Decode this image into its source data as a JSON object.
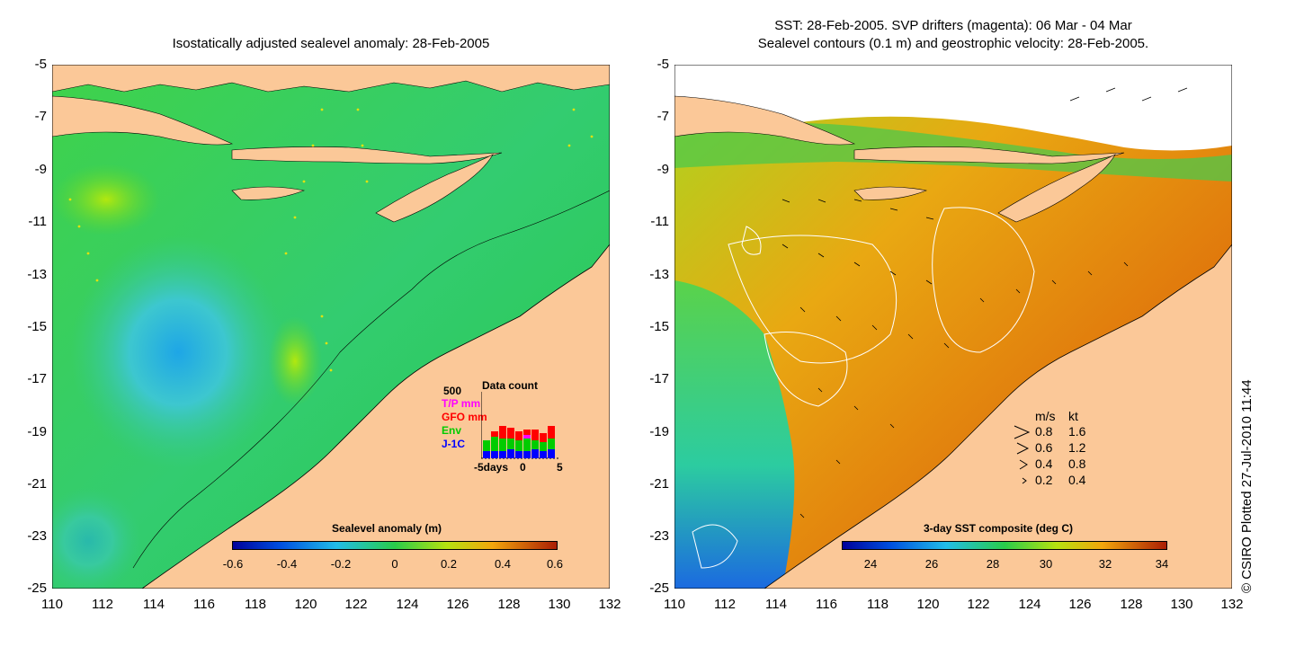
{
  "left_panel": {
    "title": "Isostatically adjusted sealevel anomaly: 28-Feb-2005",
    "y_ticks": [
      "-5",
      "-7",
      "-9",
      "-11",
      "-13",
      "-15",
      "-17",
      "-19",
      "-21",
      "-23",
      "-25"
    ],
    "x_ticks": [
      "110",
      "112",
      "114",
      "116",
      "118",
      "120",
      "122",
      "124",
      "126",
      "128",
      "130",
      "132"
    ],
    "colorbar": {
      "title": "Sealevel anomaly (m)",
      "labels": [
        "-0.6",
        "-0.4",
        "-0.2",
        "0",
        "0.2",
        "0.4",
        "0.6"
      ]
    },
    "data_count": {
      "title": "Data count",
      "max_label": "500",
      "series": [
        {
          "name": "T/P mm",
          "color": "#ff00ff"
        },
        {
          "name": "GFO mm",
          "color": "#ff0000"
        },
        {
          "name": "Env",
          "color": "#00cc00"
        },
        {
          "name": "J-1C",
          "color": "#0000ff"
        }
      ],
      "x_labels": [
        "-5days",
        "0",
        "5"
      ]
    }
  },
  "right_panel": {
    "title_line1": "SST: 28-Feb-2005. SVP drifters (magenta): 06 Mar - 04 Mar",
    "title_line2": "Sealevel contours (0.1 m) and geostrophic velocity: 28-Feb-2005.",
    "y_ticks": [
      "-5",
      "-7",
      "-9",
      "-11",
      "-13",
      "-15",
      "-17",
      "-19",
      "-21",
      "-23",
      "-25"
    ],
    "x_ticks": [
      "110",
      "112",
      "114",
      "116",
      "118",
      "120",
      "122",
      "124",
      "126",
      "128",
      "130",
      "132"
    ],
    "colorbar": {
      "title": "3-day SST composite (deg C)",
      "labels": [
        "24",
        "26",
        "28",
        "30",
        "32",
        "34"
      ]
    },
    "velocity_legend": {
      "header_ms": "m/s",
      "header_kt": "kt",
      "rows": [
        {
          "ms": "0.8",
          "kt": "1.6"
        },
        {
          "ms": "0.6",
          "kt": "1.2"
        },
        {
          "ms": "0.4",
          "kt": "0.8"
        },
        {
          "ms": "0.2",
          "kt": "0.4"
        }
      ]
    }
  },
  "credit": "© CSIRO Plotted 27-Jul-2010 11:44",
  "colors": {
    "land": "#fbc898",
    "sea_green": "#2ed14a",
    "sea_cyan": "#3cc6c6",
    "sst_orange": "#e9880c",
    "sst_dark": "#c3420a"
  }
}
